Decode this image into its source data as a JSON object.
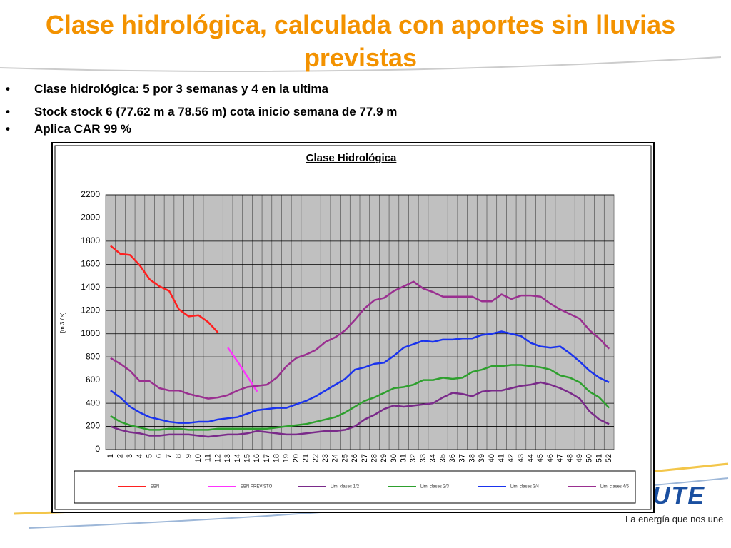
{
  "slide": {
    "title": "Clase hidrológica, calculada con aportes sin lluvias previstas",
    "bullets": [
      "Clase hidrológica:  5 por 3 semanas y 4 en la ultima",
      "Stock stock 6 (77.62 m a 78.56 m) cota inicio semana de 77.9 m",
      "Aplica CAR 99 %"
    ],
    "logo_text": "UTE",
    "tagline": "La energía que nos une"
  },
  "chart_data": {
    "type": "line",
    "title": "Clase Hidrológica",
    "y_label": "[m 3 / s]",
    "categories": [
      1,
      2,
      3,
      4,
      5,
      6,
      7,
      8,
      9,
      10,
      11,
      12,
      13,
      14,
      15,
      16,
      17,
      18,
      19,
      20,
      21,
      22,
      23,
      24,
      25,
      26,
      27,
      28,
      29,
      30,
      31,
      32,
      33,
      34,
      35,
      36,
      37,
      38,
      39,
      40,
      41,
      42,
      43,
      44,
      45,
      46,
      47,
      48,
      49,
      50,
      51,
      52
    ],
    "ylim": [
      0,
      2200
    ],
    "yticks": [
      0,
      200,
      400,
      600,
      800,
      1000,
      1200,
      1400,
      1600,
      1800,
      2000,
      2200
    ],
    "grid": true,
    "legend": "bottom",
    "series": [
      {
        "name": "EBN",
        "color": "#ff2020",
        "values": [
          1760,
          1690,
          1680,
          1590,
          1470,
          1410,
          1370,
          1210,
          1150,
          1160,
          1100,
          1010,
          null,
          null,
          null,
          null,
          null,
          null,
          null,
          null,
          null,
          null,
          null,
          null,
          null,
          null,
          null,
          null,
          null,
          null,
          null,
          null,
          null,
          null,
          null,
          null,
          null,
          null,
          null,
          null,
          null,
          null,
          null,
          null,
          null,
          null,
          null,
          null,
          null,
          null,
          null,
          null
        ]
      },
      {
        "name": "EBN PREVISTO",
        "color": "#ff33ff",
        "values": [
          null,
          null,
          null,
          null,
          null,
          null,
          null,
          null,
          null,
          null,
          null,
          null,
          880,
          760,
          630,
          500,
          null,
          null,
          null,
          null,
          null,
          null,
          null,
          null,
          null,
          null,
          null,
          null,
          null,
          null,
          null,
          null,
          null,
          null,
          null,
          null,
          null,
          null,
          null,
          null,
          null,
          null,
          null,
          null,
          null,
          null,
          null,
          null,
          null,
          null,
          null,
          null
        ]
      },
      {
        "name": "Lim. clases 1/2",
        "color": "#7a2a8a",
        "values": [
          200,
          170,
          150,
          140,
          120,
          120,
          130,
          130,
          130,
          120,
          110,
          120,
          130,
          130,
          140,
          160,
          150,
          140,
          130,
          130,
          140,
          150,
          160,
          160,
          170,
          200,
          260,
          300,
          350,
          380,
          370,
          380,
          390,
          400,
          450,
          490,
          480,
          460,
          500,
          510,
          510,
          530,
          550,
          560,
          580,
          560,
          530,
          490,
          440,
          330,
          260,
          220
        ]
      },
      {
        "name": "Lim. clases 2/3",
        "color": "#2ea02e",
        "values": [
          290,
          240,
          210,
          190,
          170,
          170,
          180,
          180,
          170,
          170,
          170,
          180,
          180,
          180,
          180,
          180,
          180,
          190,
          200,
          210,
          220,
          240,
          260,
          280,
          320,
          370,
          420,
          450,
          490,
          530,
          540,
          560,
          600,
          600,
          620,
          610,
          620,
          670,
          690,
          720,
          720,
          730,
          730,
          720,
          710,
          690,
          640,
          620,
          580,
          500,
          450,
          360
        ]
      },
      {
        "name": "Lim. clases 3/4",
        "color": "#1a33ee",
        "values": [
          510,
          450,
          370,
          320,
          280,
          260,
          240,
          230,
          230,
          240,
          240,
          260,
          270,
          280,
          310,
          340,
          350,
          360,
          360,
          390,
          420,
          460,
          510,
          560,
          610,
          690,
          710,
          740,
          750,
          810,
          880,
          910,
          940,
          930,
          950,
          950,
          960,
          960,
          990,
          1000,
          1020,
          1000,
          980,
          920,
          890,
          880,
          890,
          830,
          760,
          680,
          620,
          580
        ]
      },
      {
        "name": "Lim. clases 4/5",
        "color": "#9a2f90",
        "values": [
          790,
          740,
          680,
          590,
          590,
          530,
          510,
          510,
          480,
          460,
          440,
          450,
          470,
          510,
          540,
          550,
          560,
          620,
          720,
          790,
          820,
          860,
          930,
          970,
          1030,
          1120,
          1220,
          1290,
          1310,
          1370,
          1410,
          1450,
          1390,
          1360,
          1320,
          1320,
          1320,
          1320,
          1280,
          1280,
          1340,
          1300,
          1330,
          1330,
          1320,
          1260,
          1210,
          1170,
          1130,
          1030,
          960,
          870
        ]
      }
    ]
  }
}
